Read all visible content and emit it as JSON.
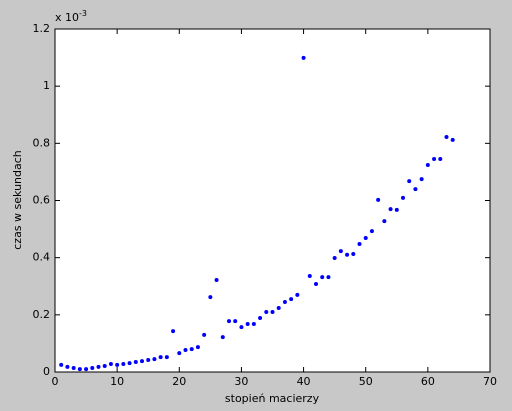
{
  "chart_data": {
    "type": "scatter",
    "xlabel": "stopień macierzy",
    "ylabel": "czas w sekundach",
    "y_multiplier": {
      "base": "x 10",
      "exponent": "-3"
    },
    "color": "#0000ff",
    "x": [
      1,
      2,
      3,
      4,
      5,
      6,
      7,
      8,
      9,
      10,
      11,
      12,
      13,
      14,
      15,
      16,
      17,
      18,
      19,
      20,
      21,
      22,
      23,
      24,
      25,
      26,
      27,
      28,
      29,
      30,
      31,
      32,
      33,
      34,
      35,
      36,
      37,
      38,
      39,
      40,
      41,
      42,
      43,
      44,
      45,
      46,
      47,
      48,
      49,
      50,
      51,
      52,
      53,
      54,
      55,
      56,
      57,
      58,
      59,
      60,
      61,
      62,
      63,
      64
    ],
    "values": [
      0.025,
      0.018,
      0.014,
      0.01,
      0.01,
      0.014,
      0.018,
      0.021,
      0.028,
      0.025,
      0.028,
      0.031,
      0.035,
      0.038,
      0.042,
      0.045,
      0.052,
      0.052,
      0.143,
      0.066,
      0.077,
      0.08,
      0.087,
      0.13,
      0.262,
      0.322,
      0.122,
      0.178,
      0.178,
      0.157,
      0.168,
      0.168,
      0.189,
      0.21,
      0.21,
      0.224,
      0.245,
      0.255,
      0.27,
      1.099,
      0.336,
      0.308,
      0.332,
      0.332,
      0.399,
      0.423,
      0.41,
      0.413,
      0.448,
      0.469,
      0.493,
      0.602,
      0.528,
      0.57,
      0.567,
      0.609,
      0.668,
      0.64,
      0.675,
      0.724,
      0.745,
      0.745,
      0.822,
      0.812
    ],
    "xlim": [
      0,
      70
    ],
    "xticks": [
      0,
      10,
      20,
      30,
      40,
      50,
      60,
      70
    ],
    "ylim": [
      0,
      1.2
    ],
    "yticks": [
      0,
      0.2,
      0.4,
      0.6,
      0.8,
      1,
      1.2
    ]
  }
}
